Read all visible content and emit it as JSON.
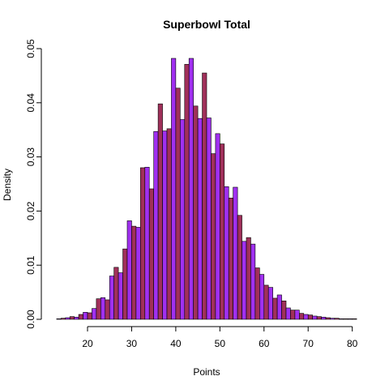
{
  "chart_data": {
    "type": "bar",
    "title": "Superbowl Total",
    "xlabel": "Points",
    "ylabel": "Density",
    "xlim": [
      11,
      83
    ],
    "ylim": [
      0,
      0.05
    ],
    "x_ticks": [
      20,
      30,
      40,
      50,
      60,
      70,
      80
    ],
    "y_ticks": [
      0.0,
      0.01,
      0.02,
      0.03,
      0.04,
      0.05
    ],
    "x_tick_labels": [
      "20",
      "30",
      "40",
      "50",
      "60",
      "70",
      "80"
    ],
    "y_tick_labels": [
      "0.00",
      "0.01",
      "0.02",
      "0.03",
      "0.04",
      "0.05"
    ],
    "grid": false,
    "bin_width": 1,
    "bin_start": 12,
    "colors": [
      "#a0305a",
      "#a030f0"
    ],
    "values": [
      0.0,
      0.0001,
      0.0002,
      0.0003,
      0.0005,
      0.0004,
      0.0009,
      0.0013,
      0.0012,
      0.002,
      0.0038,
      0.004,
      0.0036,
      0.008,
      0.0096,
      0.0086,
      0.013,
      0.0182,
      0.0172,
      0.017,
      0.028,
      0.0281,
      0.0241,
      0.0347,
      0.0398,
      0.0348,
      0.0352,
      0.0482,
      0.0427,
      0.0369,
      0.0471,
      0.0482,
      0.0394,
      0.0371,
      0.0455,
      0.0372,
      0.0306,
      0.0343,
      0.0324,
      0.0245,
      0.0224,
      0.0244,
      0.0192,
      0.0144,
      0.0151,
      0.0139,
      0.0095,
      0.0083,
      0.0063,
      0.0059,
      0.0039,
      0.0045,
      0.0034,
      0.0021,
      0.0017,
      0.0017,
      0.0011,
      0.0009,
      0.0008,
      0.0006,
      0.0005,
      0.0004,
      0.0003,
      0.0002,
      0.0002,
      0.0001,
      0.0001,
      0.0001,
      0.0001,
      0.0
    ]
  }
}
